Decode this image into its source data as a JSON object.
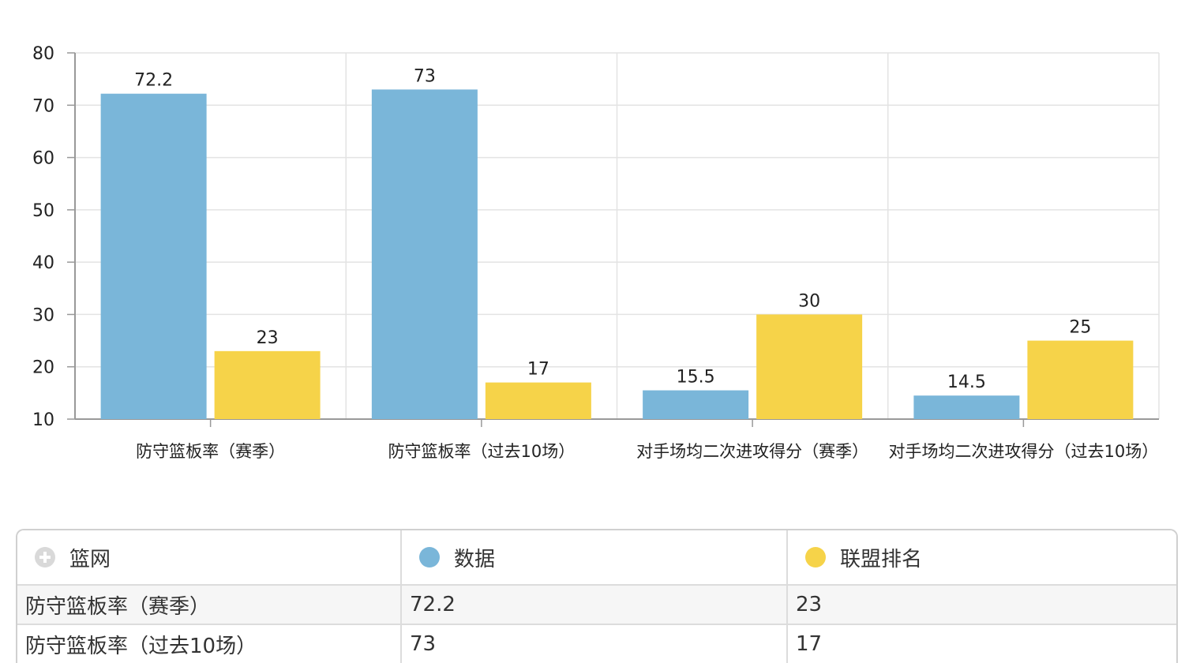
{
  "chart_data": {
    "type": "bar",
    "categories": [
      "防守篮板率（赛季）",
      "防守篮板率（过去10场）",
      "对手场均二次进攻得分（赛季）",
      "对手场均二次进攻得分（过去10场）"
    ],
    "series": [
      {
        "name": "数据",
        "color": "#7ab6d9",
        "values": [
          72.2,
          73,
          15.5,
          14.5
        ]
      },
      {
        "name": "联盟排名",
        "color": "#f6d349",
        "values": [
          23,
          17,
          30,
          25
        ]
      }
    ],
    "ylim": [
      10,
      80
    ],
    "yticks": [
      10,
      20,
      30,
      40,
      50,
      60,
      70,
      80
    ],
    "grid": true
  },
  "table": {
    "header": {
      "col0": "篮网",
      "col1": "数据",
      "col2": "联盟排名"
    },
    "rows": [
      {
        "label": "防守篮板率（赛季）",
        "value": "72.2",
        "rank": "23"
      },
      {
        "label": "防守篮板率（过去10场）",
        "value": "73",
        "rank": "17"
      }
    ]
  },
  "colors": {
    "series_data": "#7ab6d9",
    "series_rank": "#f6d349",
    "grid": "#e3e3e3",
    "axis": "#999999"
  }
}
